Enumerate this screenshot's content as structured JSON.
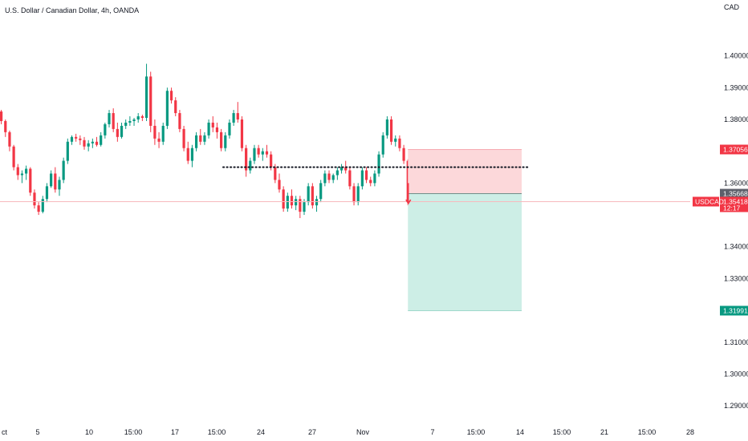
{
  "chart_data": {
    "type": "candlestick",
    "title": "U.S. Dollar / Canadian Dollar, 4h, OANDA",
    "currency": "CAD",
    "ylim": [
      1.285,
      1.412
    ],
    "y_ticks": [
      "1.40000",
      "1.39000",
      "1.38000",
      "1.36000",
      "1.34000",
      "1.33000",
      "1.31000",
      "1.30000",
      "1.29000"
    ],
    "x_ticks": [
      "ct",
      "5",
      "10",
      "15:00",
      "17",
      "15:00",
      "24",
      "27",
      "Nov",
      "7",
      "15:00",
      "14",
      "15:00",
      "21",
      "15:00",
      "28"
    ],
    "candles": [
      [
        1.3825,
        1.383,
        1.3785,
        1.3795
      ],
      [
        1.3795,
        1.38,
        1.3745,
        1.376
      ],
      [
        1.376,
        1.3765,
        1.37,
        1.3715
      ],
      [
        1.3715,
        1.372,
        1.364,
        1.365
      ],
      [
        1.365,
        1.366,
        1.361,
        1.3625
      ],
      [
        1.3625,
        1.364,
        1.36,
        1.363
      ],
      [
        1.363,
        1.3655,
        1.361,
        1.3645
      ],
      [
        1.3645,
        1.365,
        1.356,
        1.357
      ],
      [
        1.357,
        1.358,
        1.352,
        1.353
      ],
      [
        1.353,
        1.354,
        1.35,
        1.351
      ],
      [
        1.351,
        1.356,
        1.3505,
        1.355
      ],
      [
        1.355,
        1.36,
        1.354,
        1.359
      ],
      [
        1.359,
        1.364,
        1.3585,
        1.363
      ],
      [
        1.363,
        1.365,
        1.357,
        1.358
      ],
      [
        1.358,
        1.362,
        1.356,
        1.361
      ],
      [
        1.361,
        1.368,
        1.36,
        1.367
      ],
      [
        1.367,
        1.374,
        1.366,
        1.373
      ],
      [
        1.373,
        1.375,
        1.372,
        1.3745
      ],
      [
        1.3745,
        1.3755,
        1.373,
        1.374
      ],
      [
        1.374,
        1.375,
        1.372,
        1.3735
      ],
      [
        1.3735,
        1.3745,
        1.3705,
        1.3715
      ],
      [
        1.3715,
        1.3735,
        1.37,
        1.3725
      ],
      [
        1.3725,
        1.374,
        1.371,
        1.373
      ],
      [
        1.373,
        1.3745,
        1.3715,
        1.372
      ],
      [
        1.372,
        1.376,
        1.3715,
        1.375
      ],
      [
        1.375,
        1.379,
        1.374,
        1.3785
      ],
      [
        1.3785,
        1.383,
        1.3775,
        1.382
      ],
      [
        1.382,
        1.3835,
        1.376,
        1.377
      ],
      [
        1.377,
        1.379,
        1.373,
        1.3745
      ],
      [
        1.3745,
        1.379,
        1.374,
        1.378
      ],
      [
        1.378,
        1.38,
        1.377,
        1.379
      ],
      [
        1.379,
        1.381,
        1.378,
        1.3795
      ],
      [
        1.3795,
        1.3805,
        1.378,
        1.38
      ],
      [
        1.38,
        1.382,
        1.379,
        1.381
      ],
      [
        1.381,
        1.3815,
        1.3795,
        1.3805
      ],
      [
        1.3805,
        1.3975,
        1.3795,
        1.3935
      ],
      [
        1.3935,
        1.395,
        1.376,
        1.378
      ],
      [
        1.378,
        1.38,
        1.372,
        1.374
      ],
      [
        1.374,
        1.376,
        1.371,
        1.373
      ],
      [
        1.373,
        1.379,
        1.372,
        1.378
      ],
      [
        1.378,
        1.39,
        1.377,
        1.389
      ],
      [
        1.389,
        1.39,
        1.385,
        1.386
      ],
      [
        1.386,
        1.387,
        1.381,
        1.382
      ],
      [
        1.382,
        1.383,
        1.376,
        1.377
      ],
      [
        1.377,
        1.378,
        1.37,
        1.371
      ],
      [
        1.371,
        1.373,
        1.366,
        1.367
      ],
      [
        1.367,
        1.372,
        1.365,
        1.371
      ],
      [
        1.371,
        1.376,
        1.37,
        1.375
      ],
      [
        1.375,
        1.377,
        1.372,
        1.373
      ],
      [
        1.373,
        1.376,
        1.372,
        1.375
      ],
      [
        1.375,
        1.38,
        1.374,
        1.379
      ],
      [
        1.379,
        1.381,
        1.376,
        1.3775
      ],
      [
        1.3775,
        1.379,
        1.374,
        1.376
      ],
      [
        1.376,
        1.377,
        1.37,
        1.371
      ],
      [
        1.371,
        1.376,
        1.37,
        1.375
      ],
      [
        1.375,
        1.38,
        1.374,
        1.379
      ],
      [
        1.379,
        1.383,
        1.378,
        1.382
      ],
      [
        1.382,
        1.3855,
        1.379,
        1.38
      ],
      [
        1.38,
        1.381,
        1.37,
        1.371
      ],
      [
        1.371,
        1.372,
        1.362,
        1.364
      ],
      [
        1.364,
        1.368,
        1.363,
        1.367
      ],
      [
        1.367,
        1.372,
        1.366,
        1.371
      ],
      [
        1.371,
        1.372,
        1.368,
        1.369
      ],
      [
        1.369,
        1.371,
        1.367,
        1.37
      ],
      [
        1.37,
        1.372,
        1.368,
        1.369
      ],
      [
        1.369,
        1.37,
        1.364,
        1.365
      ],
      [
        1.365,
        1.366,
        1.36,
        1.361
      ],
      [
        1.361,
        1.363,
        1.357,
        1.358
      ],
      [
        1.358,
        1.359,
        1.351,
        1.352
      ],
      [
        1.352,
        1.357,
        1.351,
        1.356
      ],
      [
        1.356,
        1.358,
        1.352,
        1.353
      ],
      [
        1.353,
        1.356,
        1.3515,
        1.355
      ],
      [
        1.355,
        1.356,
        1.349,
        1.351
      ],
      [
        1.351,
        1.355,
        1.35,
        1.354
      ],
      [
        1.354,
        1.36,
        1.353,
        1.359
      ],
      [
        1.359,
        1.36,
        1.352,
        1.353
      ],
      [
        1.353,
        1.356,
        1.351,
        1.355
      ],
      [
        1.355,
        1.361,
        1.354,
        1.36
      ],
      [
        1.36,
        1.364,
        1.359,
        1.363
      ],
      [
        1.363,
        1.364,
        1.36,
        1.361
      ],
      [
        1.361,
        1.363,
        1.36,
        1.3625
      ],
      [
        1.3625,
        1.365,
        1.361,
        1.364
      ],
      [
        1.364,
        1.366,
        1.363,
        1.365
      ],
      [
        1.365,
        1.367,
        1.363,
        1.364
      ],
      [
        1.364,
        1.365,
        1.358,
        1.359
      ],
      [
        1.359,
        1.36,
        1.353,
        1.354
      ],
      [
        1.354,
        1.36,
        1.353,
        1.359
      ],
      [
        1.359,
        1.365,
        1.358,
        1.364
      ],
      [
        1.364,
        1.365,
        1.36,
        1.361
      ],
      [
        1.361,
        1.362,
        1.359,
        1.36
      ],
      [
        1.36,
        1.364,
        1.359,
        1.363
      ],
      [
        1.363,
        1.37,
        1.362,
        1.369
      ],
      [
        1.369,
        1.376,
        1.368,
        1.375
      ],
      [
        1.375,
        1.381,
        1.374,
        1.38
      ],
      [
        1.38,
        1.381,
        1.372,
        1.373
      ],
      [
        1.373,
        1.375,
        1.3715,
        1.374
      ],
      [
        1.374,
        1.375,
        1.37,
        1.371
      ],
      [
        1.371,
        1.372,
        1.366,
        1.367
      ],
      [
        1.367,
        1.3675,
        1.353,
        1.3541
      ]
    ],
    "support_level": 1.365,
    "position": {
      "side": "short",
      "stop_loss": 1.37056,
      "entry": 1.35668,
      "take_profit": 1.31991
    },
    "current_price": 1.35418,
    "price_tags": [
      {
        "value": 1.37056,
        "label": "1.37056",
        "color": "#f23645"
      },
      {
        "value": 1.35668,
        "label": "1.35668",
        "color": "#5d606b"
      },
      {
        "value": 1.35418,
        "label": "1.35418",
        "color": "#f23645"
      },
      {
        "value": 1.31991,
        "label": "1.31991",
        "color": "#089981"
      }
    ],
    "symbol_tag": "USDCAD",
    "countdown": "12:17",
    "colors": {
      "up": "#089981",
      "down": "#f23645",
      "profit": "#cdeee6",
      "loss": "#fcd8da"
    },
    "grid": false,
    "legend": "none"
  }
}
